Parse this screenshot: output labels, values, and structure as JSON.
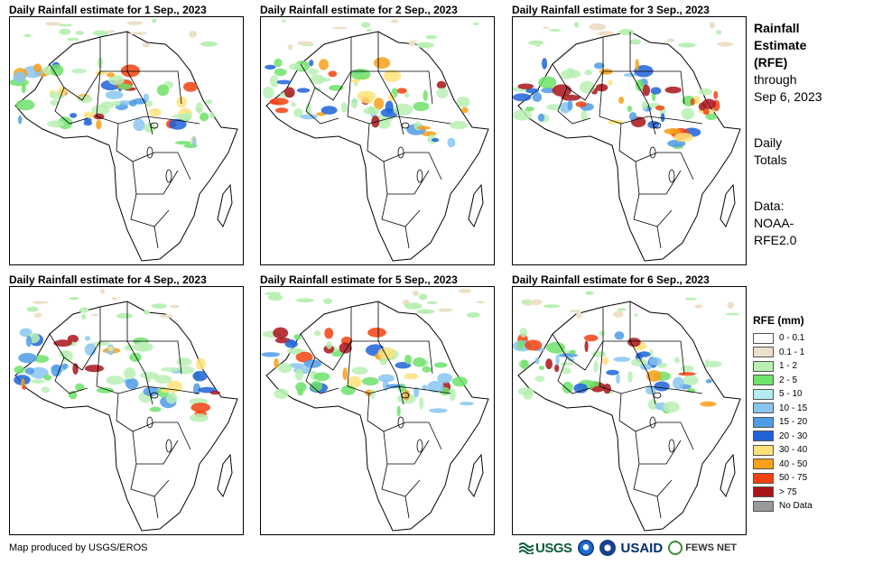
{
  "panels": [
    {
      "title": "Daily Rainfall estimate for 1 Sep., 2023"
    },
    {
      "title": "Daily Rainfall estimate for 2 Sep., 2023"
    },
    {
      "title": "Daily Rainfall estimate for 3 Sep., 2023"
    },
    {
      "title": "Daily Rainfall estimate for 4 Sep., 2023"
    },
    {
      "title": "Daily Rainfall estimate for 5 Sep., 2023"
    },
    {
      "title": "Daily Rainfall estimate for 6 Sep., 2023"
    }
  ],
  "sidebar": {
    "title_lines": [
      "Rainfall",
      "Estimate",
      "(RFE)"
    ],
    "through_lines": [
      "through",
      "Sep 6, 2023"
    ],
    "totals_lines": [
      "Daily",
      "Totals"
    ],
    "data_lines": [
      "Data:",
      "NOAA-",
      "RFE2.0"
    ]
  },
  "legend": {
    "title": "RFE (mm)",
    "items": [
      {
        "label": "0 - 0.1",
        "color": "#ffffff"
      },
      {
        "label": "0.1 - 1",
        "color": "#ede0c8"
      },
      {
        "label": "1 - 2",
        "color": "#b9f0b4"
      },
      {
        "label": "2 - 5",
        "color": "#6ee26a"
      },
      {
        "label": "5 - 10",
        "color": "#b4ecf2"
      },
      {
        "label": "10 - 15",
        "color": "#88c6f0"
      },
      {
        "label": "15 - 20",
        "color": "#4f9be6"
      },
      {
        "label": "20 - 30",
        "color": "#1f63d9"
      },
      {
        "label": "30 - 40",
        "color": "#ffe27a"
      },
      {
        "label": "40 - 50",
        "color": "#f7a019"
      },
      {
        "label": "50 - 75",
        "color": "#f2420f"
      },
      {
        "label": "> 75",
        "color": "#a8141a"
      },
      {
        "label": "No Data",
        "color": "#999999"
      }
    ]
  },
  "credit": "Map produced by USGS/EROS",
  "logos": {
    "usgs": "USGS",
    "usaid": "USAID",
    "fews": "FEWS NET"
  }
}
